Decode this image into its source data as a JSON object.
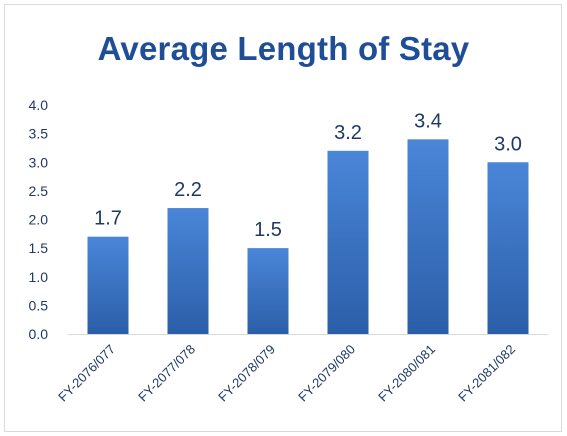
{
  "chart_data": {
    "type": "bar",
    "title": "Average Length of Stay",
    "categories": [
      "FY-2076/077",
      "FY-2077/078",
      "FY-2078/079",
      "FY-2079/080",
      "FY-2080/081",
      "FY-2081/082"
    ],
    "values": [
      1.7,
      2.2,
      1.5,
      3.2,
      3.4,
      3.0
    ],
    "data_labels": [
      "1.7",
      "2.2",
      "1.5",
      "3.2",
      "3.4",
      "3.0"
    ],
    "y_ticks": [
      "0.0",
      "0.5",
      "1.0",
      "1.5",
      "2.0",
      "2.5",
      "3.0",
      "3.5",
      "4.0"
    ],
    "ylim": [
      0,
      4.0
    ],
    "xlabel": "",
    "ylabel": "",
    "grid": false,
    "legend": "none",
    "colors": {
      "bar_top": "#4a86d8",
      "bar_bottom": "#2b5ea8",
      "title": "#1f4e96",
      "axis_text": "#1f3864",
      "axis_line": "#d9d9d9"
    }
  }
}
